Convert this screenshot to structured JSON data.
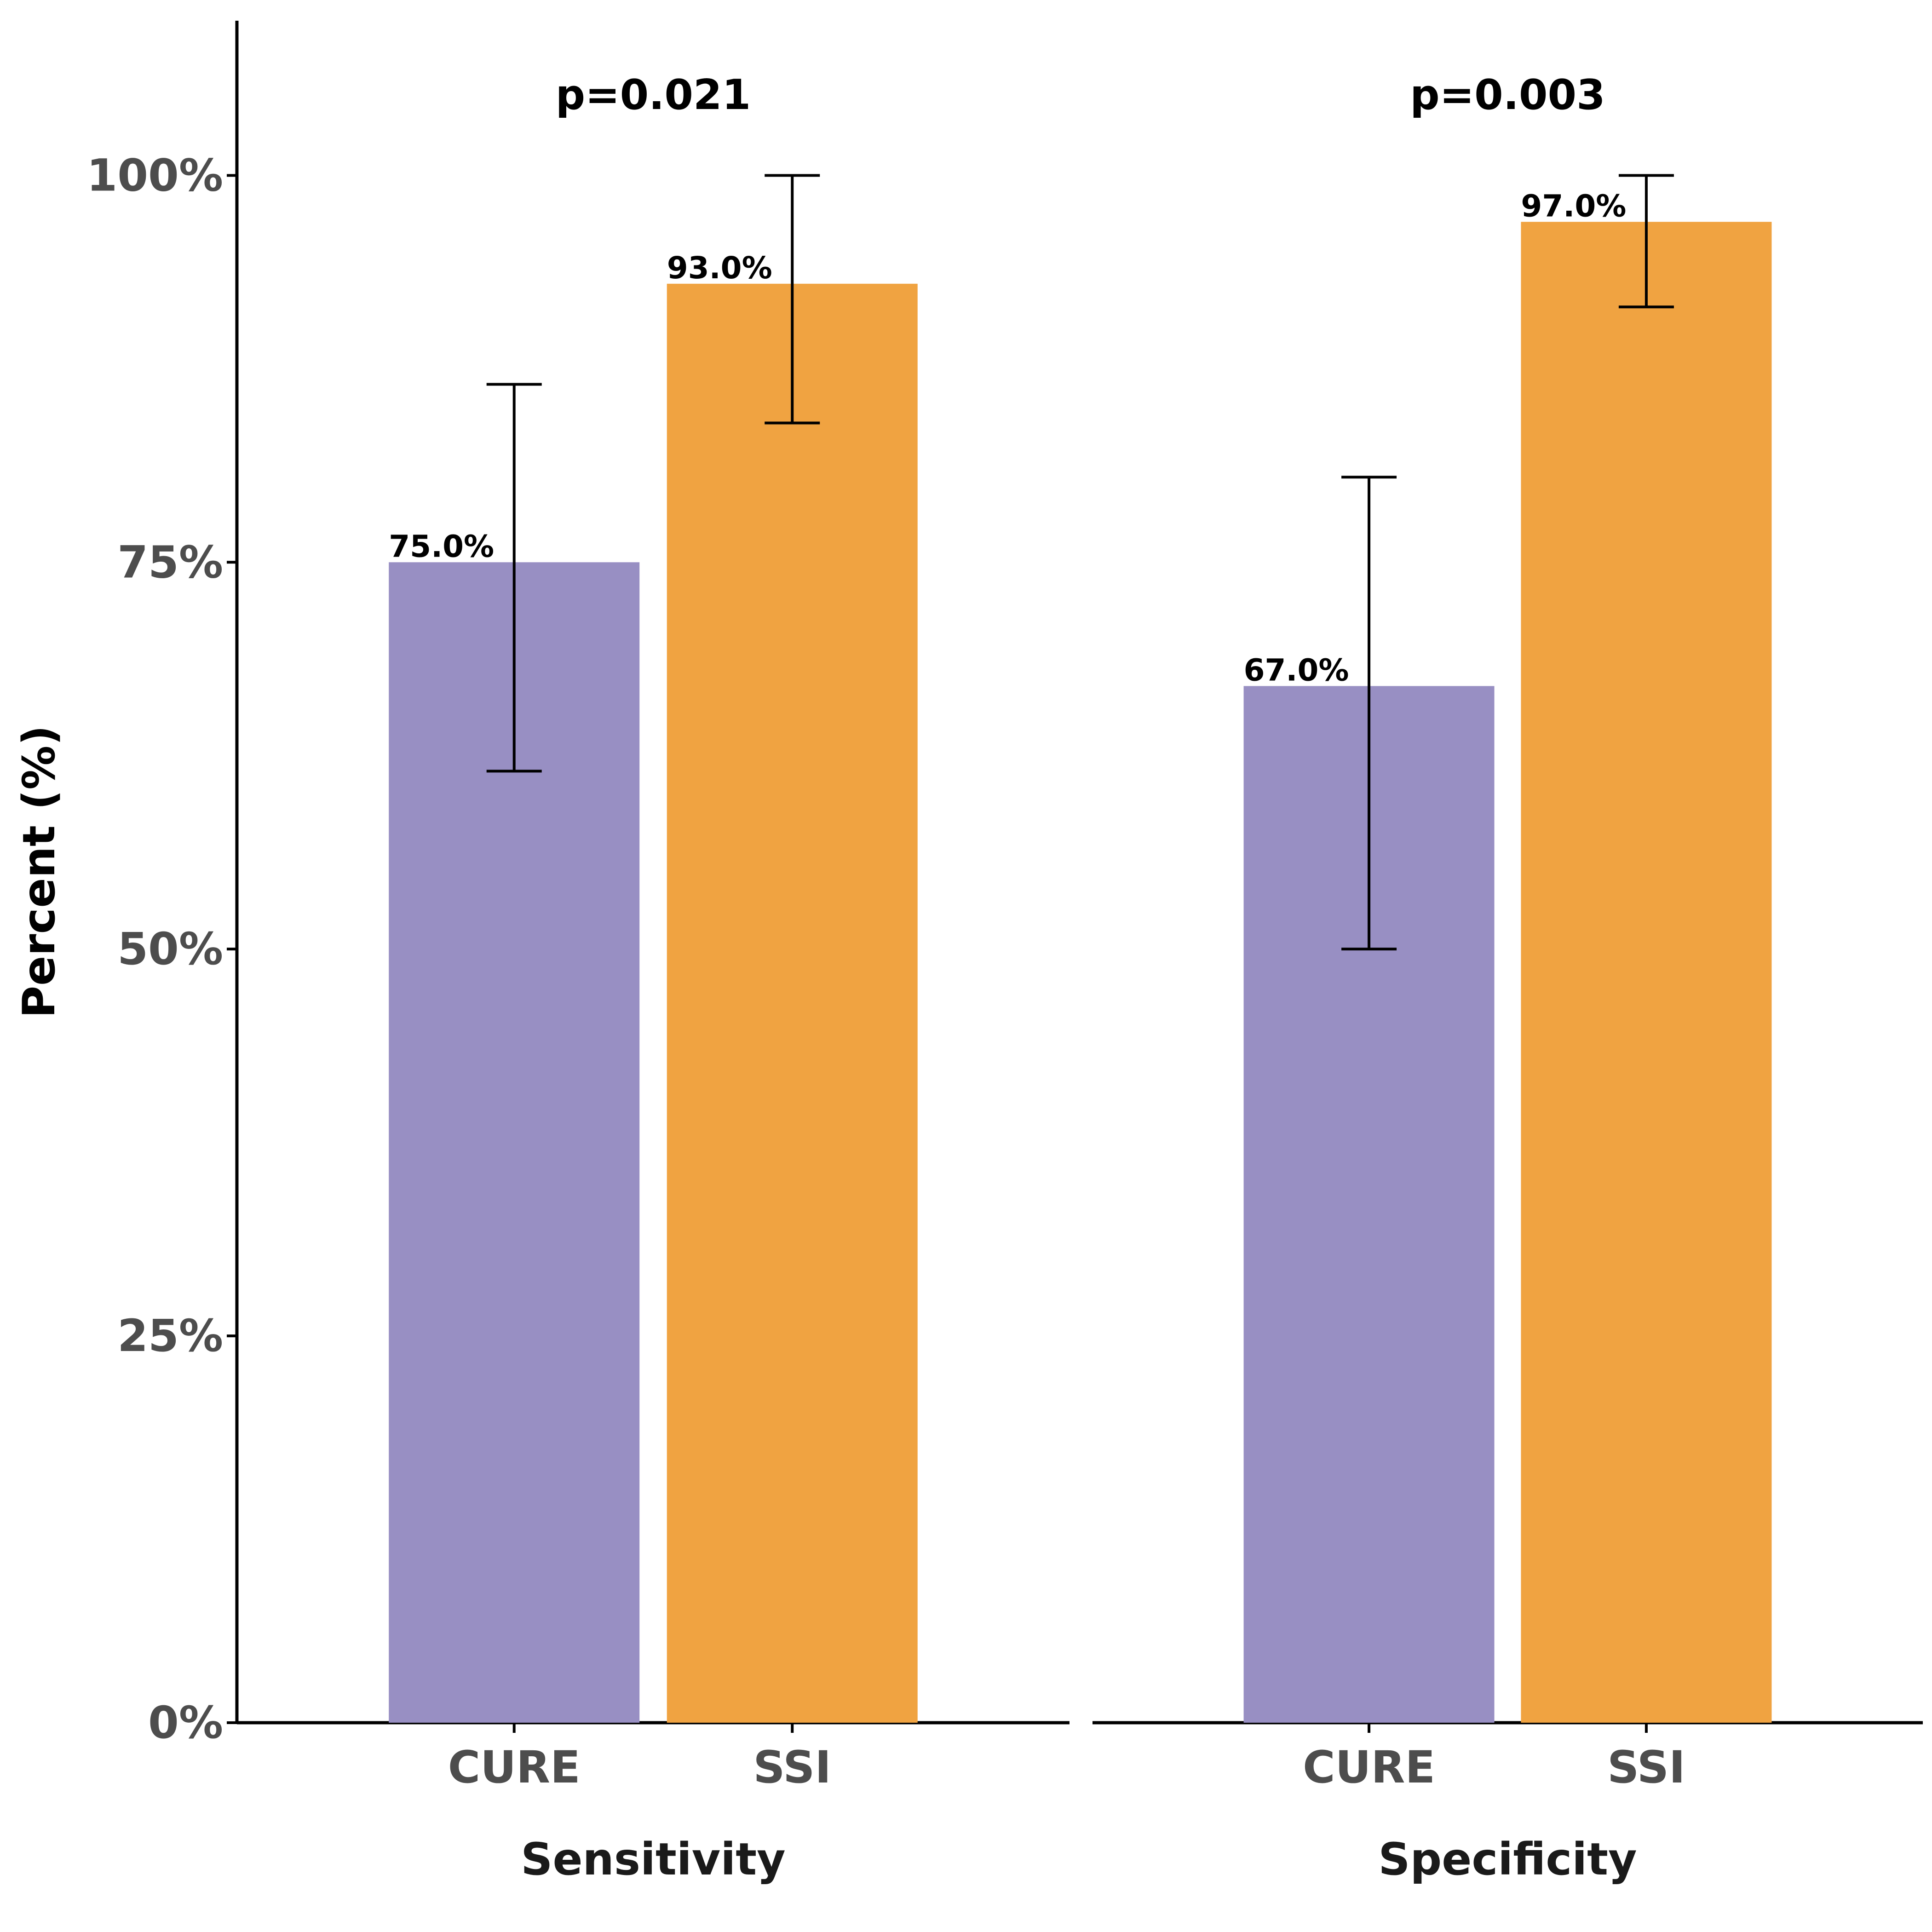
{
  "chart_data": {
    "type": "bar",
    "ylabel": "Percent (%)",
    "ylim": [
      0,
      110
    ],
    "yticks": [
      0,
      25,
      50,
      75,
      100
    ],
    "ytick_labels": [
      "0%",
      "25%",
      "50%",
      "75%",
      "100%"
    ],
    "grid": false,
    "legend": "none",
    "categories": [
      "CURE",
      "SSI"
    ],
    "colors": {
      "CURE": "#988fc3",
      "SSI": "#f0a341"
    },
    "panels": [
      {
        "facet_label": "Sensitivity",
        "p_value": "p=0.021",
        "bars": [
          {
            "category": "CURE",
            "value": 75.0,
            "label": "75.0%",
            "ci": [
              61.5,
              86.5
            ]
          },
          {
            "category": "SSI",
            "value": 93.0,
            "label": "93.0%",
            "ci": [
              84.0,
              100.0
            ]
          }
        ]
      },
      {
        "facet_label": "Specificity",
        "p_value": "p=0.003",
        "bars": [
          {
            "category": "CURE",
            "value": 67.0,
            "label": "67.0%",
            "ci": [
              50.0,
              80.5
            ]
          },
          {
            "category": "SSI",
            "value": 97.0,
            "label": "97.0%",
            "ci": [
              91.5,
              100.0
            ]
          }
        ]
      }
    ]
  }
}
